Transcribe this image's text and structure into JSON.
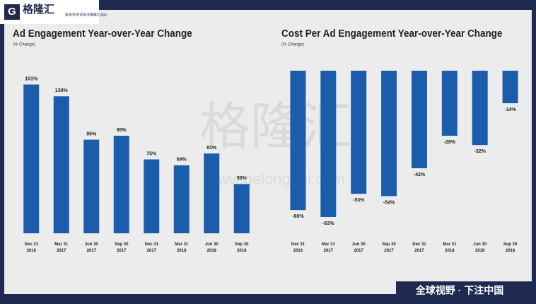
{
  "branding": {
    "logo": "格隆汇",
    "tagline": "更多资讯请关注格隆汇App",
    "watermark": "格隆汇",
    "watermark_url": "www.gelonghui.com",
    "footer": "全球视野 · 下注中国"
  },
  "chart_data": [
    {
      "type": "bar",
      "title": "Ad Engagement Year-over-Year Change",
      "subtitle": "(% Change)",
      "categories": [
        "Dec 31 2016",
        "Mar 31 2017",
        "Jun 30 2017",
        "Sep 30 2017",
        "Dec 31 2017",
        "Mar 31 2018",
        "Jun 30 2018",
        "Sep 30 2018"
      ],
      "values": [
        151,
        139,
        95,
        99,
        75,
        69,
        81,
        50
      ],
      "value_labels": [
        "151%",
        "139%",
        "95%",
        "99%",
        "75%",
        "69%",
        "81%",
        "50%"
      ],
      "color": "#1b5daa",
      "ylim": [
        0,
        165
      ]
    },
    {
      "type": "bar",
      "title": "Cost Per Ad Engagement Year-over-Year Change",
      "subtitle": "(% Change)",
      "categories": [
        "Dec 31 2016",
        "Mar 31 2017",
        "Jun 30 2017",
        "Sep 30 2017",
        "Dec 31 2017",
        "Mar 31 2018",
        "Jun 30 2018",
        "Sep 30 2018"
      ],
      "values": [
        -60,
        -63,
        -53,
        -54,
        -42,
        -28,
        -32,
        -14
      ],
      "value_labels": [
        "-60%",
        "-63%",
        "-53%",
        "-54%",
        "-42%",
        "-28%",
        "-32%",
        "-14%"
      ],
      "color": "#1b5daa",
      "ylim": [
        -70,
        0
      ]
    }
  ]
}
